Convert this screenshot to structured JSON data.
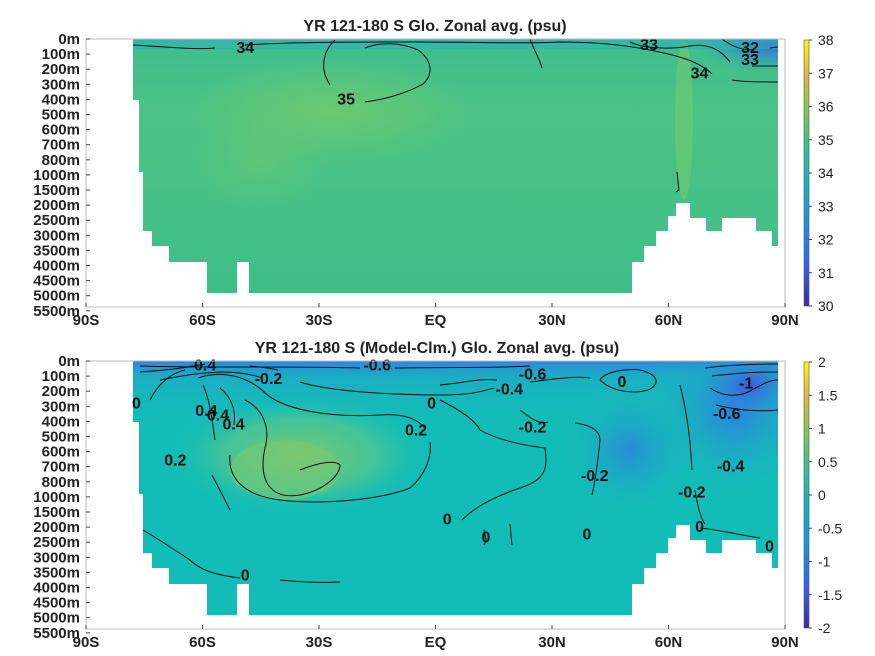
{
  "chart_data": [
    {
      "type": "heatmap",
      "title": "YR 121-180 S Glo. Zonal avg. (psu)",
      "x_ticks": [
        "90S",
        "60S",
        "30S",
        "EQ",
        "30N",
        "60N",
        "90N"
      ],
      "x_range": [
        -90,
        90
      ],
      "y_ticks": [
        "0m",
        "100m",
        "200m",
        "300m",
        "400m",
        "500m",
        "600m",
        "700m",
        "800m",
        "1000m",
        "1500m",
        "2000m",
        "2500m",
        "3000m",
        "3500m",
        "4000m",
        "4500m",
        "5000m",
        "5500m"
      ],
      "colorbar": {
        "min": 30,
        "max": 38,
        "ticks": [
          "38",
          "37",
          "36",
          "35",
          "34",
          "33",
          "32",
          "31",
          "30"
        ]
      },
      "contour_labels": [
        {
          "text": "34",
          "lat": -49,
          "depth_index": 0.6
        },
        {
          "text": "35",
          "lat": -23,
          "depth_index": 4.0
        },
        {
          "text": "33",
          "lat": 55,
          "depth_index": 0.4
        },
        {
          "text": "32",
          "lat": 81,
          "depth_index": 0.6
        },
        {
          "text": "33",
          "lat": 81,
          "depth_index": 1.4
        },
        {
          "text": "34",
          "lat": 68,
          "depth_index": 2.3
        }
      ],
      "colors": {
        "base": "#3fbf8a",
        "mid": "#57c77a",
        "low": "#1f9fc8",
        "very_low": "#3a63de"
      }
    },
    {
      "type": "heatmap",
      "title": "YR 121-180 S (Model-Clm.) Glo. Zonal avg. (psu)",
      "x_ticks": [
        "90S",
        "60S",
        "30S",
        "EQ",
        "30N",
        "60N",
        "90N"
      ],
      "x_range": [
        -90,
        90
      ],
      "y_ticks": [
        "0m",
        "100m",
        "200m",
        "300m",
        "400m",
        "500m",
        "600m",
        "700m",
        "800m",
        "1000m",
        "1500m",
        "2000m",
        "2500m",
        "3000m",
        "3500m",
        "4000m",
        "4500m",
        "5000m",
        "5500m"
      ],
      "colorbar": {
        "min": -2,
        "max": 2,
        "ticks": [
          "2",
          "1.5",
          "1",
          "0.5",
          "0",
          "-0.5",
          "-1",
          "-1.5",
          "-2"
        ]
      },
      "contour_labels": [
        {
          "text": "-0.4",
          "lat": -60,
          "depth_index": 0.3
        },
        {
          "text": "-0.2",
          "lat": -43,
          "depth_index": 1.2
        },
        {
          "text": "-0.6",
          "lat": -15,
          "depth_index": 0.3
        },
        {
          "text": "-0.6",
          "lat": 25,
          "depth_index": 0.9
        },
        {
          "text": "-0.4",
          "lat": 19,
          "depth_index": 1.9
        },
        {
          "text": "0",
          "lat": 48,
          "depth_index": 1.4
        },
        {
          "text": "-1",
          "lat": 80,
          "depth_index": 1.5
        },
        {
          "text": "-0.6",
          "lat": 75,
          "depth_index": 3.5
        },
        {
          "text": "0",
          "lat": -77,
          "depth_index": 2.8
        },
        {
          "text": "0.4",
          "lat": -59,
          "depth_index": 3.3
        },
        {
          "text": "0.4",
          "lat": -52,
          "depth_index": 4.2
        },
        {
          "text": "0.4",
          "lat": -56,
          "depth_index": 3.6
        },
        {
          "text": "0",
          "lat": -1,
          "depth_index": 2.8
        },
        {
          "text": "0.2",
          "lat": -5,
          "depth_index": 4.6
        },
        {
          "text": "-0.2",
          "lat": 25,
          "depth_index": 4.4
        },
        {
          "text": "0.2",
          "lat": -67,
          "depth_index": 6.6
        },
        {
          "text": "-0.4",
          "lat": 76,
          "depth_index": 7.0
        },
        {
          "text": "-0.2",
          "lat": 41,
          "depth_index": 7.6
        },
        {
          "text": "-0.2",
          "lat": 66,
          "depth_index": 8.7
        },
        {
          "text": "0",
          "lat": 3,
          "depth_index": 10.5
        },
        {
          "text": "0",
          "lat": 13,
          "depth_index": 11.7
        },
        {
          "text": "0",
          "lat": 39,
          "depth_index": 11.5
        },
        {
          "text": "0",
          "lat": 68,
          "depth_index": 11.0
        },
        {
          "text": "0",
          "lat": 86,
          "depth_index": 12.3
        },
        {
          "text": "0",
          "lat": -49,
          "depth_index": 14.2
        }
      ],
      "colors": {
        "base": "#13bdb7",
        "pos": "#6cc97b",
        "neg": "#2a8fdc",
        "neg_strong": "#3b62df"
      }
    }
  ]
}
